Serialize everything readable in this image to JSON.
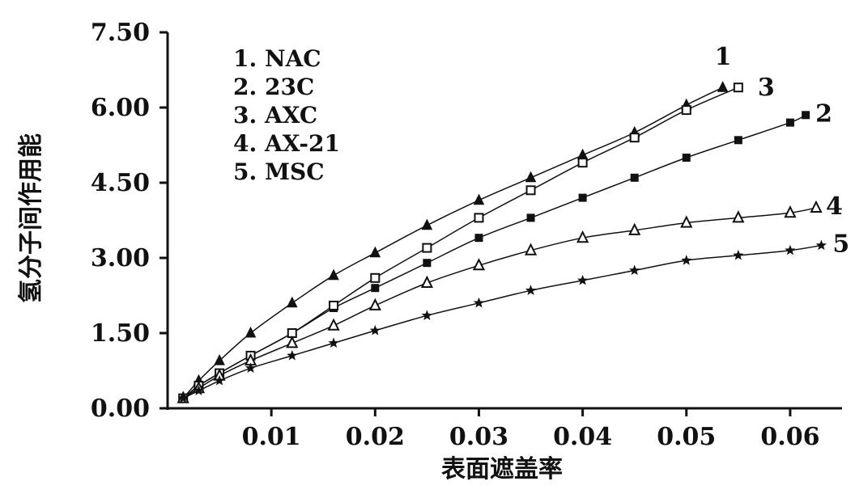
{
  "chart_data": {
    "type": "line",
    "title": "",
    "xlabel": "表面遮盖率",
    "ylabel": "氢分子间作用能",
    "xlim": [
      0.0,
      0.065
    ],
    "ylim": [
      0.0,
      7.5
    ],
    "x_ticks": [
      "0.01",
      "0.02",
      "0.03",
      "0.04",
      "0.05",
      "0.06"
    ],
    "y_ticks": [
      "0.00",
      "1.50",
      "3.00",
      "4.50",
      "6.00",
      "7.50"
    ],
    "grid": false,
    "legend_position": "top-left",
    "legend": [
      "1. NAC",
      "2. 23C",
      "3. AXC",
      "4. AX-21",
      "5. MSC"
    ],
    "series": [
      {
        "name": "1. NAC",
        "end_label": "1",
        "marker": "filled-triangle",
        "x": [
          0.0015,
          0.003,
          0.005,
          0.008,
          0.012,
          0.016,
          0.02,
          0.025,
          0.03,
          0.035,
          0.04,
          0.045,
          0.05,
          0.0535
        ],
        "y": [
          0.2,
          0.55,
          0.95,
          1.5,
          2.1,
          2.65,
          3.1,
          3.65,
          4.15,
          4.6,
          5.05,
          5.5,
          6.05,
          6.4
        ]
      },
      {
        "name": "2. 23C",
        "end_label": "2",
        "marker": "filled-square",
        "x": [
          0.0015,
          0.003,
          0.005,
          0.008,
          0.012,
          0.016,
          0.02,
          0.025,
          0.03,
          0.035,
          0.04,
          0.045,
          0.05,
          0.055,
          0.06,
          0.0615
        ],
        "y": [
          0.2,
          0.45,
          0.7,
          1.05,
          1.5,
          2.0,
          2.4,
          2.9,
          3.4,
          3.8,
          4.2,
          4.6,
          5.0,
          5.35,
          5.7,
          5.85
        ]
      },
      {
        "name": "3. AXC",
        "end_label": "3",
        "marker": "open-square",
        "x": [
          0.0015,
          0.003,
          0.005,
          0.008,
          0.012,
          0.016,
          0.02,
          0.025,
          0.03,
          0.035,
          0.04,
          0.045,
          0.05,
          0.055
        ],
        "y": [
          0.2,
          0.45,
          0.7,
          1.05,
          1.5,
          2.05,
          2.6,
          3.2,
          3.8,
          4.35,
          4.9,
          5.4,
          5.95,
          6.4
        ]
      },
      {
        "name": "4. AX-21",
        "end_label": "4",
        "marker": "open-triangle",
        "x": [
          0.0015,
          0.003,
          0.005,
          0.008,
          0.012,
          0.016,
          0.02,
          0.025,
          0.03,
          0.035,
          0.04,
          0.045,
          0.05,
          0.055,
          0.06,
          0.0625
        ],
        "y": [
          0.2,
          0.4,
          0.65,
          0.95,
          1.3,
          1.65,
          2.05,
          2.5,
          2.85,
          3.15,
          3.4,
          3.55,
          3.7,
          3.8,
          3.9,
          4.0
        ]
      },
      {
        "name": "5. MSC",
        "end_label": "5",
        "marker": "star",
        "x": [
          0.0015,
          0.003,
          0.005,
          0.008,
          0.012,
          0.016,
          0.02,
          0.025,
          0.03,
          0.035,
          0.04,
          0.045,
          0.05,
          0.055,
          0.06,
          0.063
        ],
        "y": [
          0.2,
          0.35,
          0.55,
          0.8,
          1.05,
          1.3,
          1.55,
          1.85,
          2.1,
          2.35,
          2.55,
          2.75,
          2.95,
          3.05,
          3.15,
          3.25
        ]
      }
    ],
    "colors": {
      "ink": "#111111",
      "background": "#ffffff"
    }
  }
}
